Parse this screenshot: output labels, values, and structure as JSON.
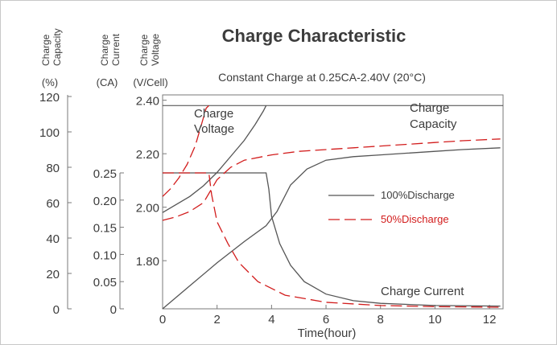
{
  "chart_data": {
    "type": "line",
    "title": "Charge Characteristic",
    "subtitle": "Constant Charge at 0.25CA-2.40V  (20°C)",
    "xlabel": "Time(hour)",
    "x_ticks": [
      "0",
      "2",
      "4",
      "6",
      "8",
      "10",
      "12"
    ],
    "xlim": [
      0,
      12.5
    ],
    "axes": [
      {
        "id": "capacity",
        "label_line1": "Charge",
        "label_line2": "Capacity",
        "unit": "(%)",
        "ticks": [
          "120",
          "100",
          "80",
          "60",
          "40",
          "20",
          "0"
        ],
        "range": [
          0,
          120
        ]
      },
      {
        "id": "current",
        "label_line1": "Charge",
        "label_line2": "Current",
        "unit": "(CA)",
        "ticks": [
          "0.25",
          "0.20",
          "0.15",
          "0.10",
          "0.05",
          "0"
        ],
        "range": [
          0,
          0.25
        ]
      },
      {
        "id": "voltage",
        "label_line1": "Charge",
        "label_line2": "Voltage",
        "unit": "(V/Cell)",
        "ticks": [
          "2.40",
          "2.20",
          "2.00",
          "1.80"
        ],
        "range": [
          1.62,
          2.42
        ]
      }
    ],
    "curve_labels": {
      "voltage_line1": "Charge",
      "voltage_line2": "Voltage",
      "capacity_line1": "Charge",
      "capacity_line2": "Capacity",
      "current": "Charge Current"
    },
    "legend": {
      "position": "center-right",
      "entries": [
        {
          "name": "100%Discharge",
          "style": "solid",
          "color": "#555555"
        },
        {
          "name": "50%Discharge",
          "style": "dashed",
          "color": "#d21c1c"
        }
      ]
    },
    "reference_lines": {
      "voltage_limit": 2.38,
      "current_limit": 0.25
    },
    "series": [
      {
        "name": "100%Discharge",
        "quantity": "voltage",
        "axis": "voltage",
        "points": [
          [
            0,
            1.98
          ],
          [
            0.5,
            2.01
          ],
          [
            1.0,
            2.04
          ],
          [
            1.5,
            2.08
          ],
          [
            2.0,
            2.13
          ],
          [
            2.5,
            2.19
          ],
          [
            3.0,
            2.25
          ],
          [
            3.4,
            2.31
          ],
          [
            3.7,
            2.36
          ],
          [
            3.8,
            2.38
          ]
        ]
      },
      {
        "name": "100%Discharge",
        "quantity": "current",
        "axis": "current",
        "points": [
          [
            0,
            0.25
          ],
          [
            3.8,
            0.25
          ],
          [
            3.9,
            0.22
          ],
          [
            4.0,
            0.17
          ],
          [
            4.3,
            0.12
          ],
          [
            4.7,
            0.08
          ],
          [
            5.2,
            0.05
          ],
          [
            6.0,
            0.027
          ],
          [
            7.0,
            0.015
          ],
          [
            8.0,
            0.01
          ],
          [
            10.0,
            0.006
          ],
          [
            12.4,
            0.005
          ]
        ]
      },
      {
        "name": "100%Discharge",
        "quantity": "capacity",
        "axis": "capacity",
        "points": [
          [
            0,
            0
          ],
          [
            1.0,
            13
          ],
          [
            2.0,
            26
          ],
          [
            3.0,
            38
          ],
          [
            3.8,
            47
          ],
          [
            4.2,
            55
          ],
          [
            4.7,
            70
          ],
          [
            5.3,
            79
          ],
          [
            6.0,
            84
          ],
          [
            7.0,
            86
          ],
          [
            8.0,
            87
          ],
          [
            9.0,
            88
          ],
          [
            10.0,
            89
          ],
          [
            11.0,
            90
          ],
          [
            12.4,
            91
          ]
        ]
      },
      {
        "name": "50%Discharge",
        "quantity": "voltage",
        "axis": "voltage",
        "points": [
          [
            0,
            2.04
          ],
          [
            0.3,
            2.07
          ],
          [
            0.6,
            2.11
          ],
          [
            0.9,
            2.16
          ],
          [
            1.2,
            2.23
          ],
          [
            1.4,
            2.3
          ],
          [
            1.6,
            2.37
          ],
          [
            1.7,
            2.38
          ]
        ]
      },
      {
        "name": "50%Discharge",
        "quantity": "current",
        "axis": "current",
        "points": [
          [
            0,
            0.25
          ],
          [
            1.7,
            0.25
          ],
          [
            1.8,
            0.21
          ],
          [
            2.0,
            0.16
          ],
          [
            2.4,
            0.12
          ],
          [
            2.8,
            0.085
          ],
          [
            3.5,
            0.05
          ],
          [
            4.5,
            0.025
          ],
          [
            6.0,
            0.012
          ],
          [
            8.0,
            0.006
          ],
          [
            10.0,
            0.004
          ],
          [
            12.4,
            0.003
          ]
        ]
      },
      {
        "name": "50%Discharge",
        "quantity": "capacity",
        "axis": "capacity",
        "points": [
          [
            0,
            50
          ],
          [
            0.5,
            52
          ],
          [
            1.0,
            55
          ],
          [
            1.5,
            60
          ],
          [
            2.0,
            73
          ],
          [
            2.5,
            80
          ],
          [
            3.0,
            84
          ],
          [
            4.0,
            87
          ],
          [
            5.0,
            89
          ],
          [
            6.0,
            90
          ],
          [
            7.0,
            91
          ],
          [
            8.0,
            92
          ],
          [
            9.0,
            93
          ],
          [
            10.0,
            94
          ],
          [
            11.0,
            95
          ],
          [
            12.4,
            96
          ]
        ]
      }
    ]
  }
}
